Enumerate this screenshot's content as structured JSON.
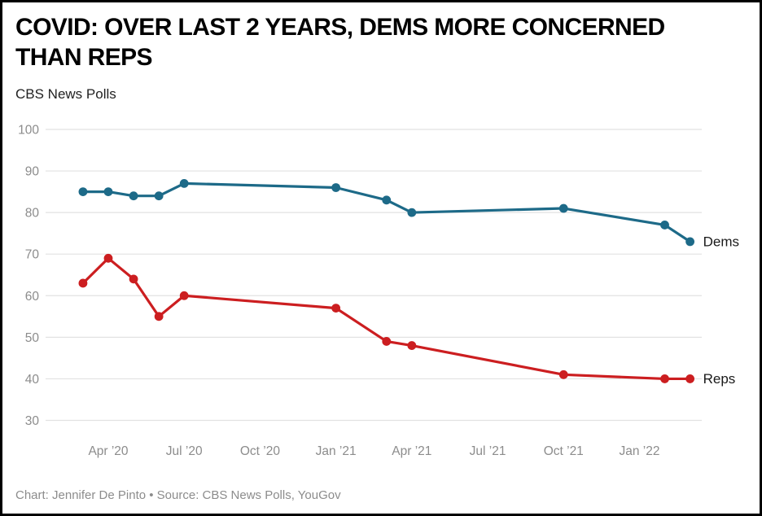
{
  "header": {
    "title_lines": [
      "COVID: OVER LAST 2 YEARS, DEMS MORE CONCERNED",
      "THAN REPS"
    ],
    "subtitle": "CBS News Polls"
  },
  "footer": {
    "credit": "Chart: Jennifer De Pinto • Source: CBS News Polls, YouGov"
  },
  "colors": {
    "dems": "#1d6a88",
    "reps": "#cc1e20",
    "grid": "#e2e2e2",
    "axis_text": "#8c8c8c",
    "series_label_text": "#1a1a1a",
    "frame_border": "#000000",
    "background": "#ffffff"
  },
  "chart_data": {
    "type": "line",
    "title": "COVID: OVER LAST 2 YEARS, DEMS MORE CONCERNED THAN REPS",
    "subtitle": "CBS News Polls",
    "x_unit": "months (0 = Apr 2020)",
    "point_dates": [
      "Mar ’20",
      "Apr ’20",
      "May ’20",
      "Jun ’20",
      "Jul ’20",
      "Jan ’21",
      "Mar ’21",
      "Apr ’21",
      "Oct ’21",
      "Feb ’22",
      "Mar ’22"
    ],
    "x_months_offset": [
      -1,
      0,
      1,
      2,
      3,
      9,
      11,
      12,
      18,
      22,
      23
    ],
    "series": [
      {
        "name": "Dems",
        "color": "#1d6a88",
        "values": [
          85,
          85,
          84,
          84,
          87,
          86,
          83,
          80,
          81,
          77,
          73
        ]
      },
      {
        "name": "Reps",
        "color": "#cc1e20",
        "values": [
          63,
          69,
          64,
          55,
          60,
          57,
          49,
          48,
          41,
          40,
          40
        ]
      }
    ],
    "yticks": [
      100,
      90,
      80,
      70,
      60,
      50,
      40,
      30
    ],
    "ylim": [
      30,
      100
    ],
    "xticks": [
      {
        "m": 0,
        "label": "Apr ’20"
      },
      {
        "m": 3,
        "label": "Jul ’20"
      },
      {
        "m": 6,
        "label": "Oct ’20"
      },
      {
        "m": 9,
        "label": "Jan ’21"
      },
      {
        "m": 12,
        "label": "Apr ’21"
      },
      {
        "m": 15,
        "label": "Jul ’21"
      },
      {
        "m": 18,
        "label": "Oct ’21"
      },
      {
        "m": 21,
        "label": "Jan ’22"
      }
    ],
    "grid": true,
    "legend_position": "line-end-labels"
  }
}
